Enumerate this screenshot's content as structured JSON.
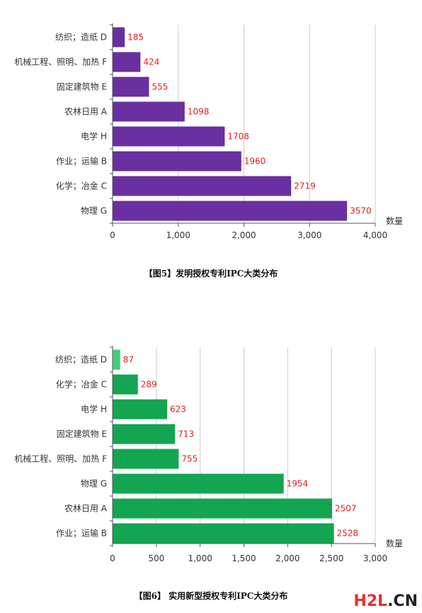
{
  "chart_data": [
    {
      "type": "bar",
      "orientation": "horizontal",
      "categories": [
        "纺织；造纸 D",
        "机械工程、照明、加热 F",
        "固定建筑物 E",
        "农林日用 A",
        "电学 H",
        "作业；运输 B",
        "化学；冶金 C",
        "物理 G"
      ],
      "values": [
        185,
        424,
        555,
        1098,
        1708,
        1960,
        2719,
        3570
      ],
      "value_labels": [
        "185",
        "424",
        "555",
        "1098",
        "1708",
        "1960",
        "2719",
        "3570"
      ],
      "xlabel": "数量",
      "xlim": [
        0,
        4000
      ],
      "xticks": [
        0,
        1000,
        2000,
        3000,
        4000
      ],
      "xtick_labels": [
        "0",
        "1,000",
        "2,000",
        "3,000",
        "4,000"
      ],
      "grid": true,
      "colors": {
        "bar": "#6a2fa0",
        "value": "#e02020"
      }
    },
    {
      "type": "bar",
      "orientation": "horizontal",
      "categories": [
        "纺织；造纸 D",
        "化学；冶金 C",
        "电学 H",
        "固定建筑物 E",
        "机械工程、照明、加热 F",
        "物理 G",
        "农林日用 A",
        "作业；运输 B"
      ],
      "values": [
        87,
        289,
        623,
        713,
        755,
        1954,
        2507,
        2528
      ],
      "value_labels": [
        "87",
        "289",
        "623",
        "713",
        "755",
        "1954",
        "2507",
        "2528"
      ],
      "xlabel": "数量",
      "xlim": [
        0,
        3000
      ],
      "xticks": [
        0,
        500,
        1000,
        1500,
        2000,
        2500,
        3000
      ],
      "xtick_labels": [
        "0",
        "500",
        "1,000",
        "1,500",
        "2,000",
        "2,500",
        "3,000"
      ],
      "grid": true,
      "colors": {
        "bar": "#13a552",
        "first_bar": "#3fcf7a",
        "value": "#e02020"
      }
    }
  ],
  "captions": {
    "chart1": "【图5】发明授权专利IPC大类分布",
    "chart2": "【图6】 实用新型授权专利IPC大类分布"
  },
  "watermark": {
    "main": "H2L",
    "suffix": ".CN"
  }
}
